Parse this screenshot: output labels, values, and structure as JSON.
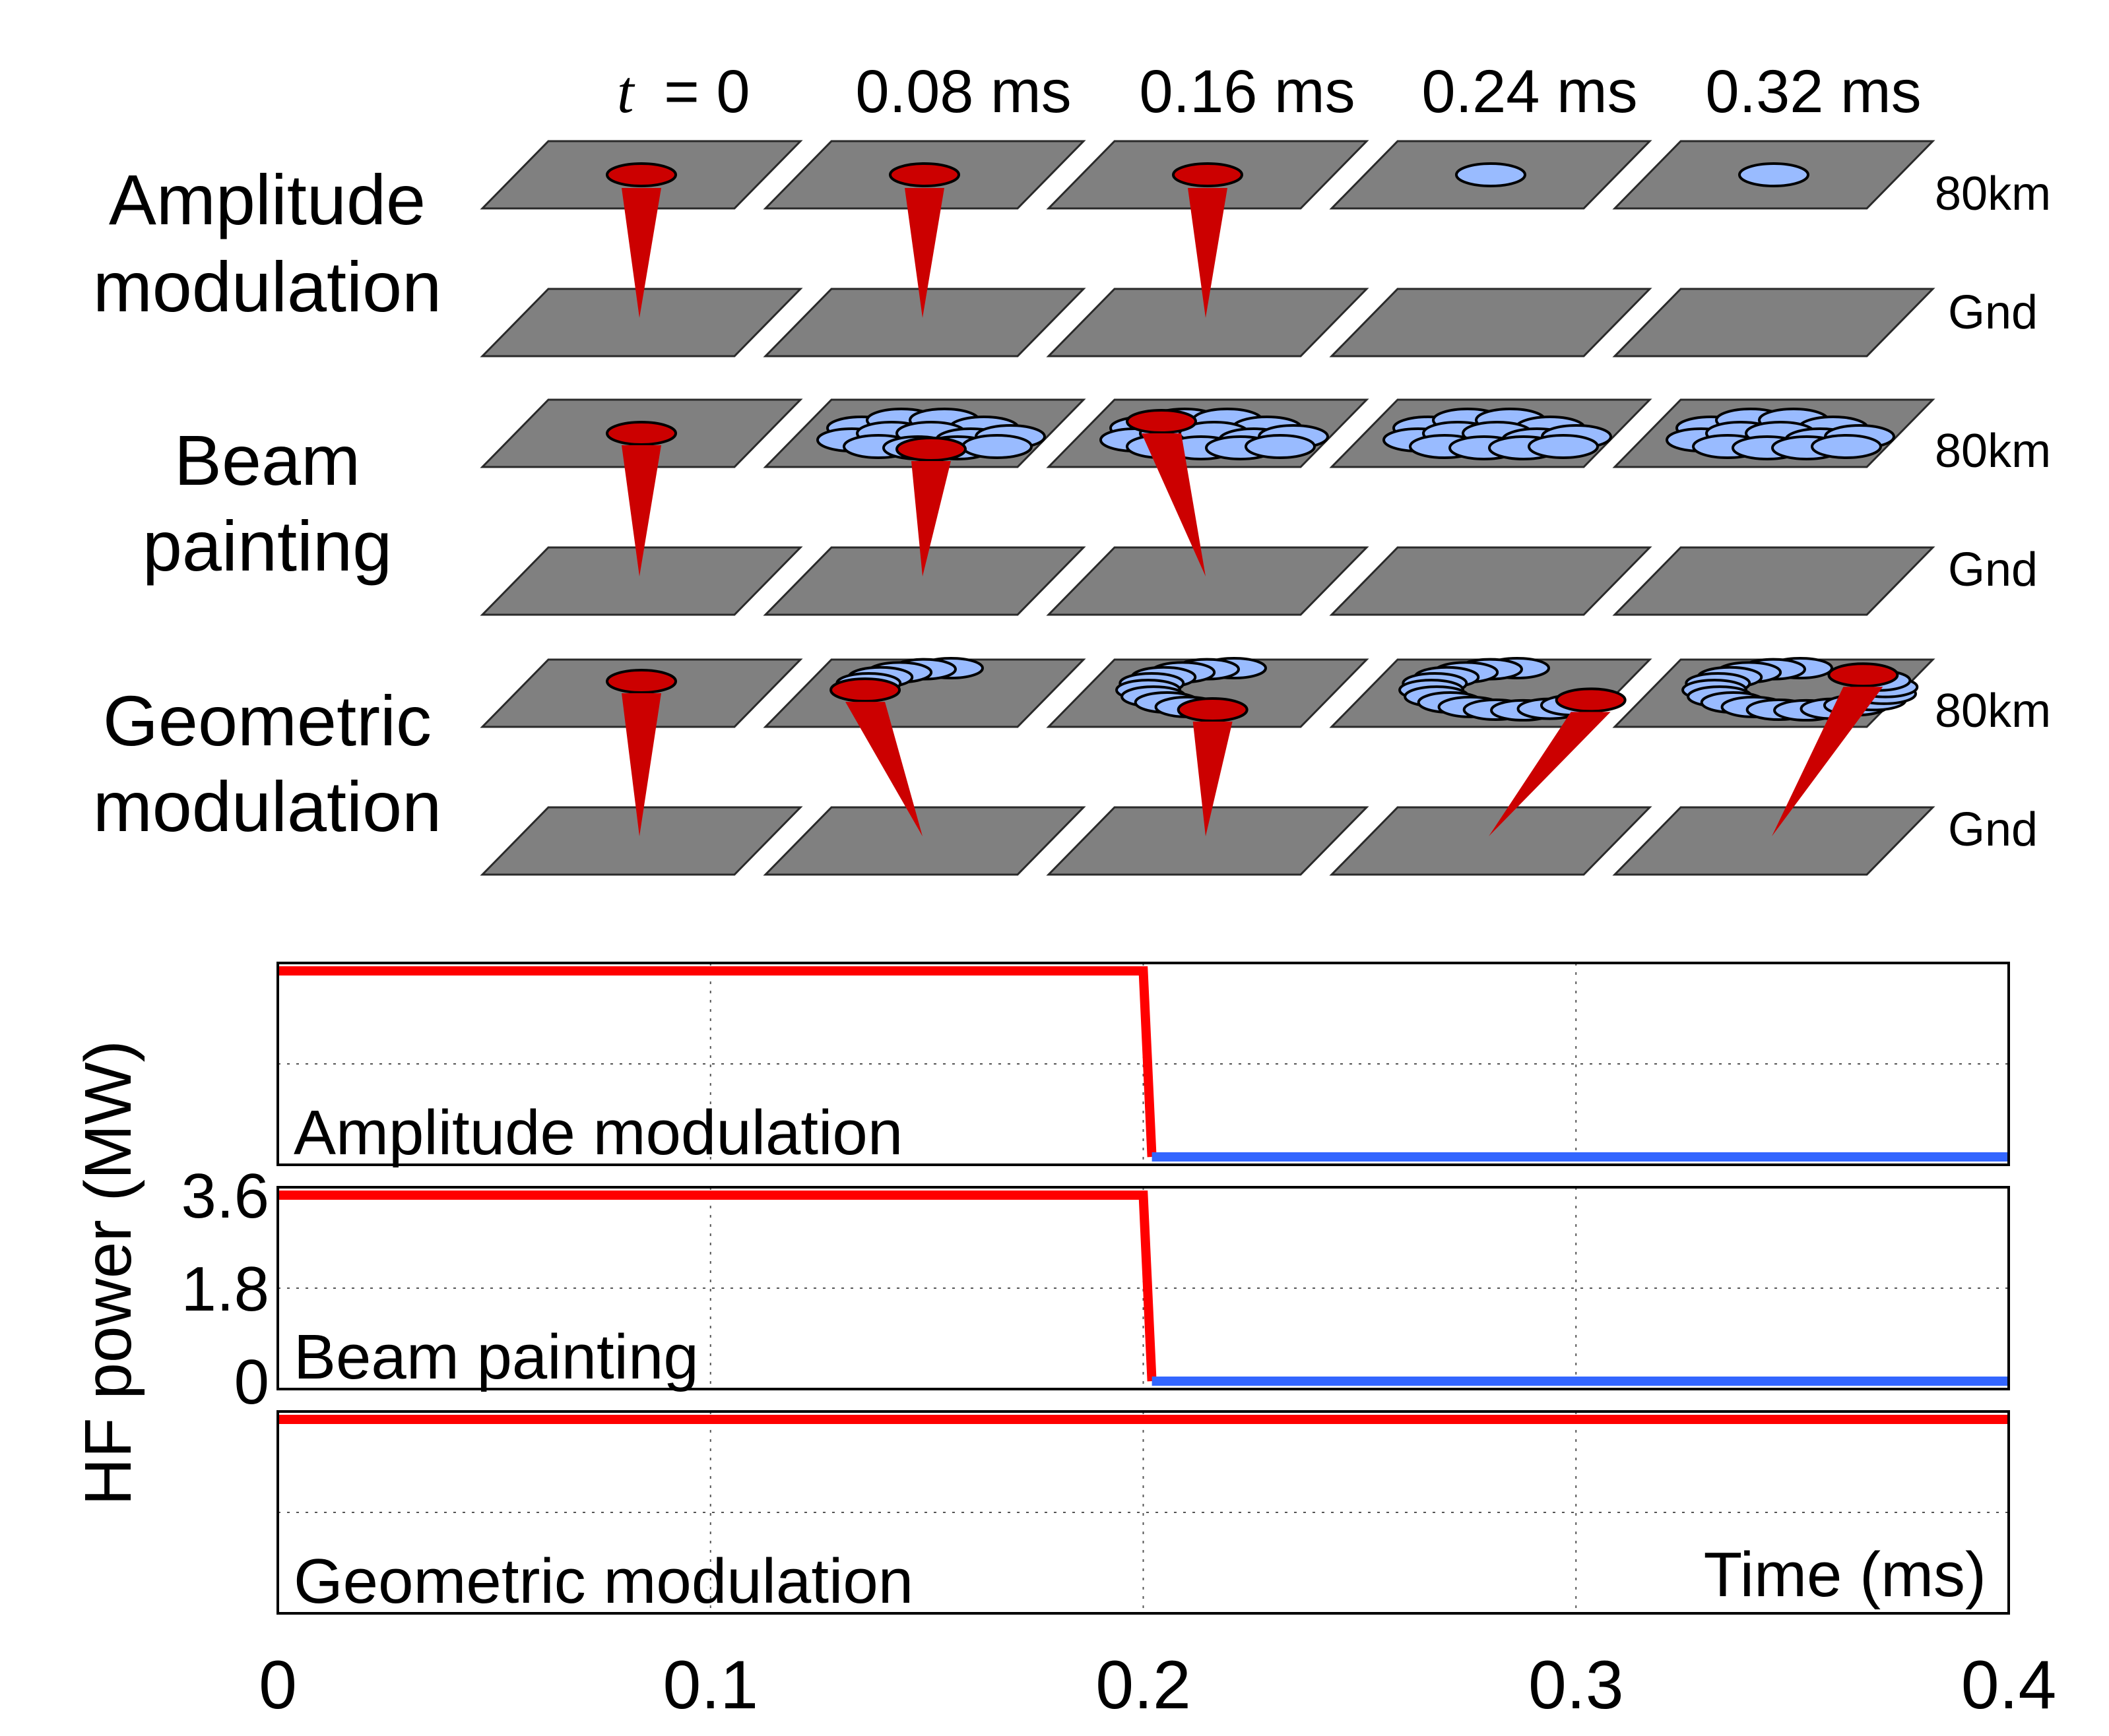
{
  "diagram": {
    "time_labels": {
      "t_symbol": "t",
      "t_equals": "= 0",
      "columns": [
        "0.08 ms",
        "0.16 ms",
        "0.24 ms",
        "0.32 ms"
      ]
    },
    "rows": [
      {
        "label_lines": [
          "Amplitude",
          "modulation"
        ],
        "type": "amplitude",
        "beam_on_columns": [
          0,
          1,
          2
        ]
      },
      {
        "label_lines": [
          "Beam",
          "painting"
        ],
        "type": "painting",
        "beam_on_columns": [
          0,
          1,
          2
        ]
      },
      {
        "label_lines": [
          "Geometric",
          "modulation"
        ],
        "type": "geometric",
        "beam_on_columns": [
          0,
          1,
          2,
          3,
          4
        ]
      }
    ],
    "layer_labels": {
      "top": "80km",
      "bottom": "Gnd"
    },
    "colors": {
      "beam": "#cc0000",
      "spot_active": "#cc0000",
      "spot_past": "#99bbff",
      "plate": "#808080"
    }
  },
  "chart_data": {
    "type": "line",
    "ylabel": "HF power (MW)",
    "xlabel": "Time (ms)",
    "xlim": [
      0,
      0.4
    ],
    "xticks": [
      "0",
      "0.1",
      "0.2",
      "0.3",
      "0.4"
    ],
    "yticks": [
      "3.6",
      "1.8",
      "0"
    ],
    "ylim": [
      0,
      3.6
    ],
    "grid": true,
    "panels": [
      {
        "title": "Amplitude modulation",
        "segments": [
          {
            "color": "#ff0000",
            "points": [
              [
                0,
                3.6
              ],
              [
                0.2,
                3.6
              ],
              [
                0.202,
                0
              ]
            ]
          },
          {
            "color": "#3366ff",
            "points": [
              [
                0.202,
                0
              ],
              [
                0.4,
                0
              ]
            ]
          }
        ]
      },
      {
        "title": "Beam painting",
        "segments": [
          {
            "color": "#ff0000",
            "points": [
              [
                0,
                3.6
              ],
              [
                0.2,
                3.6
              ],
              [
                0.202,
                0
              ]
            ]
          },
          {
            "color": "#3366ff",
            "points": [
              [
                0.202,
                0
              ],
              [
                0.4,
                0
              ]
            ]
          }
        ]
      },
      {
        "title": "Geometric modulation",
        "segments": [
          {
            "color": "#ff0000",
            "points": [
              [
                0,
                3.6
              ],
              [
                0.4,
                3.6
              ]
            ]
          }
        ]
      }
    ]
  }
}
